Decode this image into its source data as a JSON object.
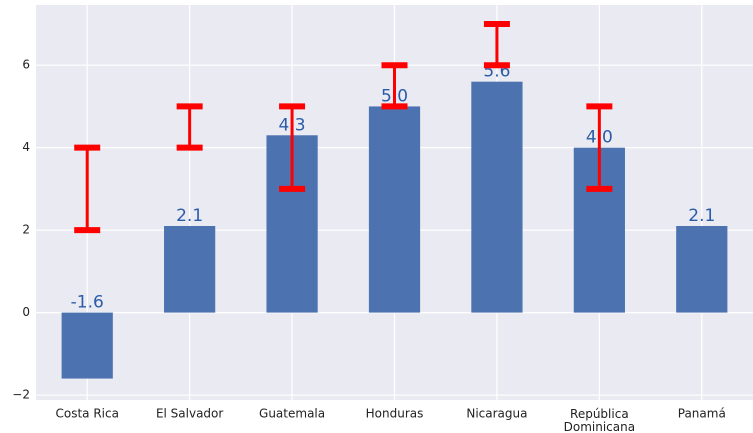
{
  "chart_data": {
    "type": "bar",
    "categories": [
      "Costa Rica",
      "El Salvador",
      "Guatemala",
      "Honduras",
      "Nicaragua",
      "República Dominicana",
      "Panamá"
    ],
    "values": [
      -1.6,
      2.1,
      4.3,
      5.0,
      5.6,
      4.0,
      2.1
    ],
    "value_labels": [
      "-1.6",
      "2.1",
      "4.3",
      "5.0",
      "5.6",
      "4.0",
      "2.1"
    ],
    "color": "#4c72b0",
    "range_low": [
      2,
      4,
      3,
      5,
      6,
      3,
      null
    ],
    "range_high": [
      4,
      5,
      5,
      6,
      7,
      5,
      null
    ],
    "range_color": "#ff0000",
    "ylim": [
      -2.12,
      7.46
    ],
    "yticks": [
      {
        "value": -2,
        "label": "−2"
      },
      0,
      2,
      4,
      6
    ],
    "grid": true
  }
}
